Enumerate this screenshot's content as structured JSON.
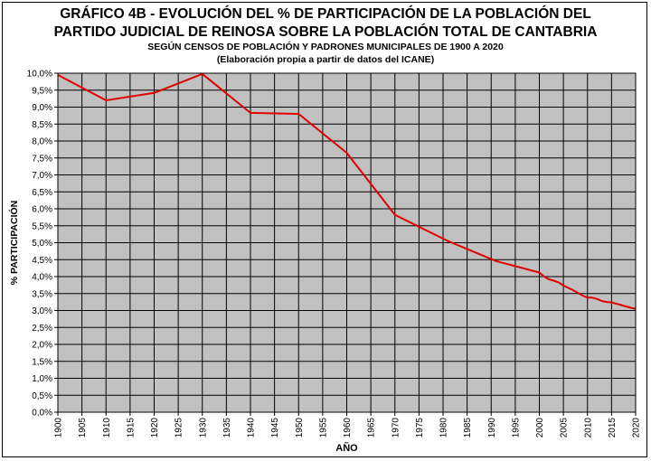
{
  "colors": {
    "plot_bg": "#c0c0c0",
    "grid": "#000000",
    "line": "#e00000",
    "text": "#000000"
  },
  "chart_data": {
    "type": "line",
    "title_lines": [
      "GRÁFICO 4B - EVOLUCIÓN DEL % DE PARTICIPACIÓN DE LA POBLACIÓN DEL",
      "PARTIDO JUDICIAL DE REINOSA SOBRE LA POBLACIÓN TOTAL DE CANTABRIA"
    ],
    "subtitle_lines": [
      "SEGÚN CENSOS DE POBLACIÓN Y PADRONES MUNICIPALES DE 1900 A 2020",
      "(Elaboración propia a partir de datos del ICANE)"
    ],
    "xlabel": "AÑO",
    "ylabel": "% PARTICIPACIÓN",
    "xlim": [
      1900,
      2020
    ],
    "ylim": [
      0,
      10
    ],
    "grid": true,
    "x_ticks": [
      1900,
      1905,
      1910,
      1915,
      1920,
      1925,
      1930,
      1935,
      1940,
      1945,
      1950,
      1955,
      1960,
      1965,
      1970,
      1975,
      1980,
      1985,
      1990,
      1995,
      2000,
      2005,
      2010,
      2015,
      2020
    ],
    "y_ticks": [
      0,
      0.5,
      1,
      1.5,
      2,
      2.5,
      3,
      3.5,
      4,
      4.5,
      5,
      5.5,
      6,
      6.5,
      7,
      7.5,
      8,
      8.5,
      9,
      9.5,
      10
    ],
    "y_tick_labels": [
      "0,0%",
      "0,5%",
      "1,0%",
      "1,5%",
      "2,0%",
      "2,5%",
      "3,0%",
      "3,5%",
      "4,0%",
      "4,5%",
      "5,0%",
      "5,5%",
      "6,0%",
      "6,5%",
      "7,0%",
      "7,5%",
      "8,0%",
      "8,5%",
      "9,0%",
      "9,5%",
      "10,0%"
    ],
    "series": [
      {
        "x": [
          1900,
          1910,
          1920,
          1930,
          1940,
          1950,
          1960,
          1970,
          1981,
          1991,
          2000,
          2001,
          2002,
          2003,
          2004,
          2005,
          2006,
          2007,
          2008,
          2009,
          2010,
          2011,
          2012,
          2013,
          2014,
          2015,
          2016,
          2017,
          2018,
          2019,
          2020
        ],
        "values": [
          9.95,
          9.2,
          9.42,
          9.98,
          8.83,
          8.8,
          7.65,
          5.82,
          5.05,
          4.46,
          4.12,
          4.0,
          3.92,
          3.88,
          3.83,
          3.74,
          3.67,
          3.6,
          3.52,
          3.44,
          3.38,
          3.38,
          3.34,
          3.28,
          3.25,
          3.24,
          3.2,
          3.16,
          3.12,
          3.08,
          3.05
        ]
      }
    ]
  }
}
